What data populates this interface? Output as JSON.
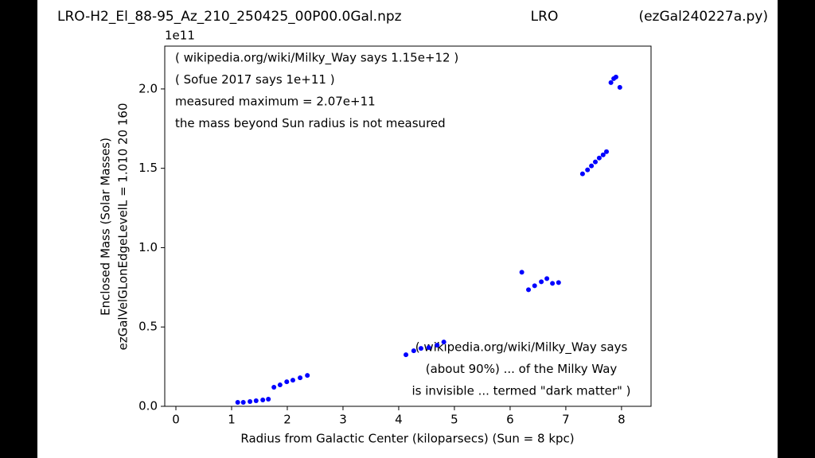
{
  "chart_data": {
    "type": "scatter",
    "title_parts": [
      "LRO-H2_El_88-95_Az_210_250425_00P00.0Gal.npz",
      "LRO",
      "(ezGal240227a.py)"
    ],
    "xlabel": "Radius from Galactic Center (kiloparsecs)  (Sun = 8 kpc)",
    "ylabel": [
      "Enclosed Mass (Solar Masses)",
      "ezGalVelGLonEdgeLevelL = 1.010  20  160"
    ],
    "y_offset_label": "1e11",
    "annotations_top": [
      "( wikipedia.org/wiki/Milky_Way says 1.15e+12 )",
      "( Sofue 2017 says 1e+11 )",
      "measured maximum = 2.07e+11",
      "the mass beyond Sun radius is not measured"
    ],
    "annotations_bottom": [
      "( wikipedia.org/wiki/Milky_Way says",
      "(about 90%) ... of the Milky Way",
      "is invisible ... termed \"dark matter\" )"
    ],
    "xlim": [
      -0.2,
      8.53
    ],
    "ylim": [
      0,
      2.27
    ],
    "xticks": [
      0,
      1,
      2,
      3,
      4,
      5,
      6,
      7,
      8
    ],
    "yticks": [
      {
        "value": 0,
        "label": "0.0"
      },
      {
        "value": 0.5,
        "label": "0.5"
      },
      {
        "value": 1,
        "label": "1.0"
      },
      {
        "value": 1.5,
        "label": "1.5"
      },
      {
        "value": 2,
        "label": "2.0"
      }
    ],
    "series": [
      {
        "color": "#0000ff",
        "x": [
          1.11,
          1.21,
          1.33,
          1.44,
          1.56,
          1.66,
          1.76,
          1.87,
          1.99,
          2.1,
          2.23,
          2.36,
          4.13,
          4.27,
          4.4,
          4.54,
          4.69,
          4.81,
          6.21,
          6.33,
          6.44,
          6.56,
          6.66,
          6.76,
          6.87,
          7.3,
          7.39,
          7.46,
          7.53,
          7.6,
          7.67,
          7.73,
          7.81,
          7.86,
          7.9,
          7.97
        ],
        "values": [
          0.025,
          0.025,
          0.03,
          0.035,
          0.04,
          0.045,
          0.12,
          0.135,
          0.155,
          0.165,
          0.18,
          0.195,
          0.325,
          0.35,
          0.365,
          0.37,
          0.385,
          0.405,
          0.845,
          0.735,
          0.76,
          0.785,
          0.805,
          0.775,
          0.78,
          1.465,
          1.49,
          1.515,
          1.54,
          1.565,
          1.585,
          1.605,
          2.04,
          2.065,
          2.075,
          2.01
        ]
      }
    ]
  }
}
